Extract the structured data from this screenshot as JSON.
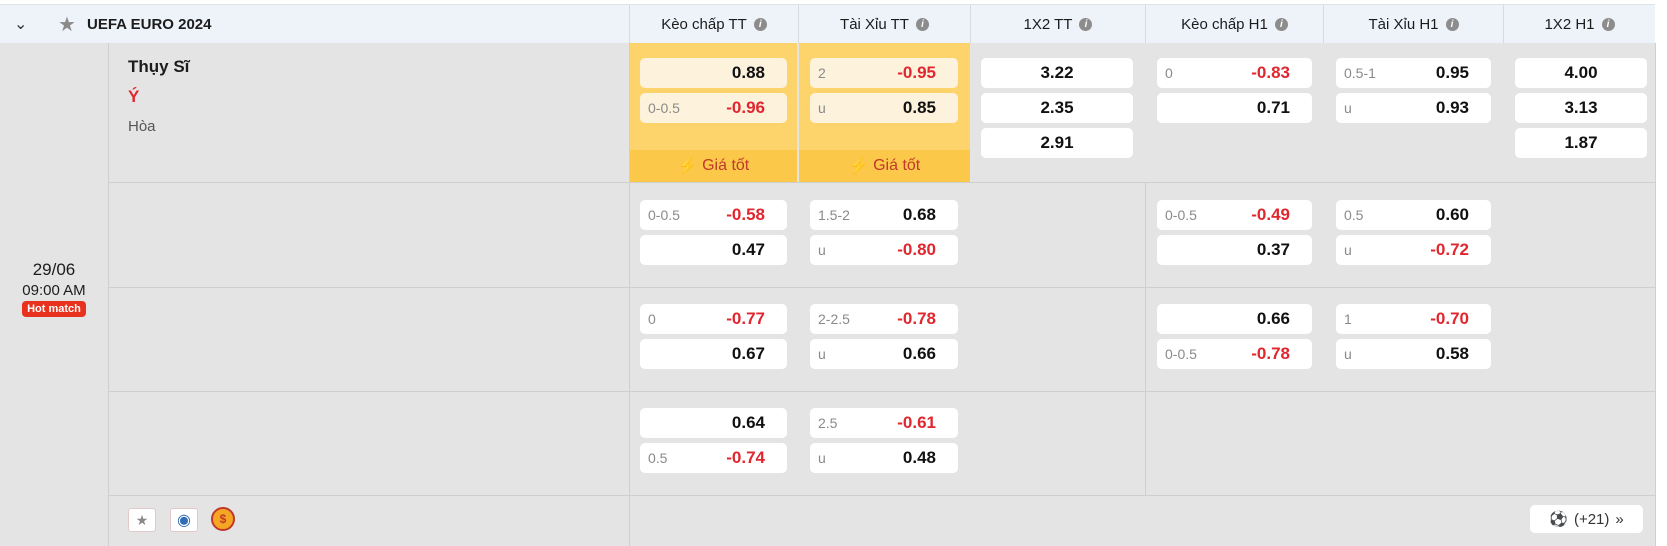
{
  "league": {
    "name": "UEFA EURO 2024",
    "collapse_icon": "chevron-down-icon",
    "favorite_icon": "star-icon"
  },
  "columns": [
    "Kèo chấp TT",
    "Tài Xỉu TT",
    "1X2 TT",
    "Kèo chấp H1",
    "Tài Xỉu H1",
    "1X2 H1"
  ],
  "match": {
    "date": "29/06",
    "time": "09:00 AM",
    "badge": "Hot match",
    "home": "Thụy Sĩ",
    "away": "Ý",
    "draw": "Hòa",
    "best_price_label": "Giá tốt",
    "more_markets": "(+21)"
  },
  "colors": {
    "negative": "#e0262e",
    "highlight": "#fdd36b",
    "badge": "#e8321e"
  },
  "rows": [
    {
      "hc_tt": [
        {
          "line": "",
          "odd": "0.88"
        },
        {
          "line": "0-0.5",
          "odd": "-0.96"
        }
      ],
      "ou_tt": [
        {
          "line": "2",
          "odd": "-0.95"
        },
        {
          "line": "u",
          "odd": "0.85"
        }
      ],
      "x12_tt": [
        "3.22",
        "2.35",
        "2.91"
      ],
      "hc_h1": [
        {
          "line": "0",
          "odd": "-0.83"
        },
        {
          "line": "",
          "odd": "0.71"
        }
      ],
      "ou_h1": [
        {
          "line": "0.5-1",
          "odd": "0.95"
        },
        {
          "line": "u",
          "odd": "0.93"
        }
      ],
      "x12_h1": [
        "4.00",
        "3.13",
        "1.87"
      ]
    },
    {
      "hc_tt": [
        {
          "line": "0-0.5",
          "odd": "-0.58"
        },
        {
          "line": "",
          "odd": "0.47"
        }
      ],
      "ou_tt": [
        {
          "line": "1.5-2",
          "odd": "0.68"
        },
        {
          "line": "u",
          "odd": "-0.80"
        }
      ],
      "hc_h1": [
        {
          "line": "0-0.5",
          "odd": "-0.49"
        },
        {
          "line": "",
          "odd": "0.37"
        }
      ],
      "ou_h1": [
        {
          "line": "0.5",
          "odd": "0.60"
        },
        {
          "line": "u",
          "odd": "-0.72"
        }
      ]
    },
    {
      "hc_tt": [
        {
          "line": "0",
          "odd": "-0.77"
        },
        {
          "line": "",
          "odd": "0.67"
        }
      ],
      "ou_tt": [
        {
          "line": "2-2.5",
          "odd": "-0.78"
        },
        {
          "line": "u",
          "odd": "0.66"
        }
      ],
      "hc_h1": [
        {
          "line": "",
          "odd": "0.66"
        },
        {
          "line": "0-0.5",
          "odd": "-0.78"
        }
      ],
      "ou_h1": [
        {
          "line": "1",
          "odd": "-0.70"
        },
        {
          "line": "u",
          "odd": "0.58"
        }
      ]
    },
    {
      "hc_tt": [
        {
          "line": "",
          "odd": "0.64"
        },
        {
          "line": "0.5",
          "odd": "-0.74"
        }
      ],
      "ou_tt": [
        {
          "line": "2.5",
          "odd": "-0.61"
        },
        {
          "line": "u",
          "odd": "0.48"
        }
      ]
    }
  ]
}
